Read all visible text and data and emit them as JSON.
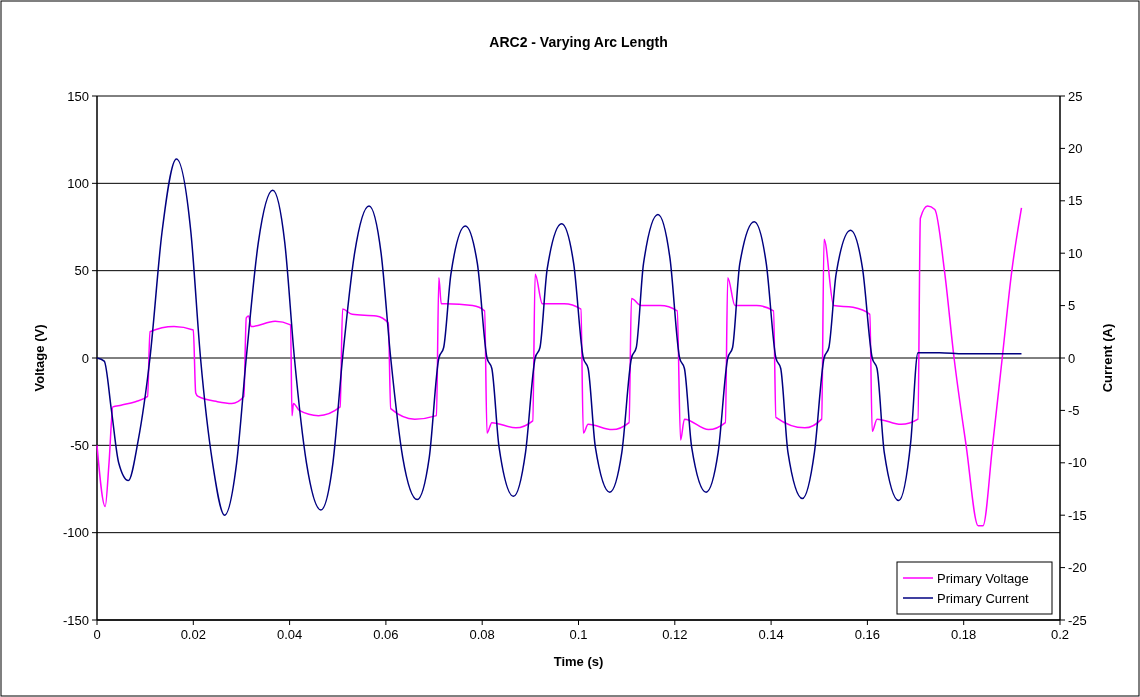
{
  "chart_data": {
    "type": "line",
    "title": "ARC2 - Varying Arc Length",
    "xlabel": "Time (s)",
    "ylabel": "Voltage (V)",
    "y2label": "Current (A)",
    "xlim": [
      0,
      0.2
    ],
    "xticks": [
      0,
      0.02,
      0.04,
      0.06,
      0.08,
      0.1,
      0.12,
      0.14,
      0.16,
      0.18,
      0.2
    ],
    "ylim": [
      -150,
      150
    ],
    "yticks": [
      -150,
      -100,
      -50,
      0,
      50,
      100,
      150
    ],
    "y2lim": [
      -25,
      25
    ],
    "y2ticks": [
      -25,
      -20,
      -15,
      -10,
      -5,
      0,
      5,
      10,
      15,
      20,
      25
    ],
    "grid": "y",
    "legend": "bottom right",
    "marker": "none",
    "line_style": "solid",
    "series": [
      {
        "name": "Primary Voltage",
        "color": "#ff00ff",
        "x": [
          0,
          0.0017,
          0.0025,
          0.0033,
          0.005,
          0.008,
          0.0105,
          0.011,
          0.016,
          0.02,
          0.0205,
          0.021,
          0.025,
          0.028,
          0.0305,
          0.031,
          0.0315,
          0.032,
          0.037,
          0.0402,
          0.0405,
          0.0408,
          0.042,
          0.046,
          0.0505,
          0.051,
          0.053,
          0.058,
          0.0605,
          0.061,
          0.066,
          0.0705,
          0.071,
          0.0715,
          0.0725,
          0.078,
          0.0805,
          0.081,
          0.082,
          0.087,
          0.0905,
          0.091,
          0.0925,
          0.097,
          0.1005,
          0.101,
          0.102,
          0.107,
          0.1105,
          0.111,
          0.113,
          0.117,
          0.1205,
          0.1212,
          0.122,
          0.127,
          0.1305,
          0.131,
          0.1325,
          0.137,
          0.1405,
          0.141,
          0.147,
          0.1505,
          0.151,
          0.153,
          0.157,
          0.1605,
          0.161,
          0.162,
          0.167,
          0.1705,
          0.171,
          0.1725,
          0.174,
          0.176,
          0.178,
          0.1805,
          0.183,
          0.184,
          0.186,
          0.188,
          0.19,
          0.192
        ],
        "values": [
          -50,
          -85,
          -60,
          -28,
          -27,
          -25,
          -22,
          15,
          18,
          16,
          -20,
          -22,
          -25,
          -26,
          -22,
          23,
          24,
          18,
          21,
          19,
          -33,
          -26,
          -30,
          -33,
          -28,
          28,
          25,
          24,
          20,
          -29,
          -35,
          -33,
          46,
          31,
          31,
          30,
          27,
          -43,
          -37,
          -40,
          -36,
          48,
          31,
          31,
          28,
          -43,
          -38,
          -41,
          -37,
          34,
          30,
          30,
          27,
          -47,
          -35,
          -41,
          -37,
          46,
          30,
          30,
          27,
          -34,
          -40,
          -35,
          68,
          30,
          29,
          25,
          -42,
          -35,
          -38,
          -35,
          80,
          87,
          85,
          50,
          0,
          -50,
          -96,
          -96,
          -50,
          0,
          50,
          86
        ]
      },
      {
        "name": "Primary Current",
        "color": "#000080",
        "axis": "y2",
        "x": [
          0,
          0.0015,
          0.003,
          0.0045,
          0.0065,
          0.0085,
          0.011,
          0.0135,
          0.0165,
          0.0195,
          0.0215,
          0.024,
          0.0265,
          0.029,
          0.031,
          0.0335,
          0.0365,
          0.039,
          0.041,
          0.0435,
          0.0465,
          0.049,
          0.051,
          0.0535,
          0.0565,
          0.059,
          0.061,
          0.0635,
          0.0665,
          0.069,
          0.071,
          0.072,
          0.0735,
          0.0765,
          0.079,
          0.081,
          0.082,
          0.0835,
          0.0865,
          0.089,
          0.091,
          0.092,
          0.0935,
          0.0965,
          0.099,
          0.101,
          0.102,
          0.1035,
          0.1065,
          0.109,
          0.111,
          0.112,
          0.1135,
          0.1165,
          0.119,
          0.121,
          0.122,
          0.1235,
          0.1265,
          0.129,
          0.131,
          0.132,
          0.1335,
          0.1365,
          0.139,
          0.141,
          0.142,
          0.1435,
          0.1465,
          0.149,
          0.151,
          0.152,
          0.1535,
          0.1565,
          0.159,
          0.161,
          0.162,
          0.1635,
          0.1665,
          0.169,
          0.1705,
          0.175,
          0.18,
          0.185,
          0.192
        ],
        "values": [
          0,
          -0.3,
          -5,
          -10,
          -11.7,
          -8,
          0,
          12,
          19,
          12,
          0,
          -10,
          -15,
          -10,
          0,
          11,
          16,
          11,
          0,
          -10,
          -14.5,
          -10,
          0,
          10,
          14.5,
          10,
          0,
          -9.5,
          -13.5,
          -9.5,
          0,
          1,
          8,
          12.6,
          9,
          0,
          -1,
          -8.5,
          -13.2,
          -9,
          0,
          1,
          8.5,
          12.8,
          9,
          0,
          -1,
          -8.5,
          -12.8,
          -9,
          0,
          1,
          9,
          13.7,
          9.5,
          0,
          -1,
          -8.5,
          -12.8,
          -9,
          0,
          1,
          9,
          13,
          9,
          0,
          -1,
          -9,
          -13.4,
          -9,
          0,
          1,
          8,
          12.2,
          8.5,
          0,
          -1,
          -9,
          -13.6,
          -8,
          0.5,
          0.5,
          0.4,
          0.4,
          0.4
        ]
      }
    ]
  }
}
